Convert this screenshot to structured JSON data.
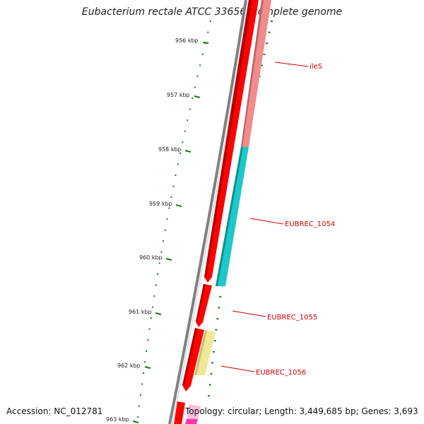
{
  "title": "Eubacterium rectale ATCC 33656, complete genome",
  "footer": {
    "accession": "Accession: NC_012781",
    "topology": "Topology: circular; Length: 3,449,685 bp; Genes: 3,693"
  },
  "ruler": {
    "labels": [
      "956 kbp",
      "957 kbp",
      "958 kbp",
      "959 kbp",
      "960 kbp",
      "961 kbp",
      "962 kbp",
      "963 kbp"
    ]
  },
  "genes": [
    {
      "name": "ileS",
      "color": "#f08c8c"
    },
    {
      "name": "EUBREC_1054",
      "color": "#1fc8c8"
    },
    {
      "name": "EUBREC_1055",
      "color": "#ff0000"
    },
    {
      "name": "EUBREC_1056",
      "color": "#f0e896"
    }
  ],
  "colors": {
    "backbone": "#808080",
    "cds": "#ff0000",
    "cds_dark": "#b40000",
    "ticks": "#1a7a1a",
    "label_lines": "#cc0000",
    "magenta": "#ff33aa",
    "pink": "#ffc0dc"
  }
}
